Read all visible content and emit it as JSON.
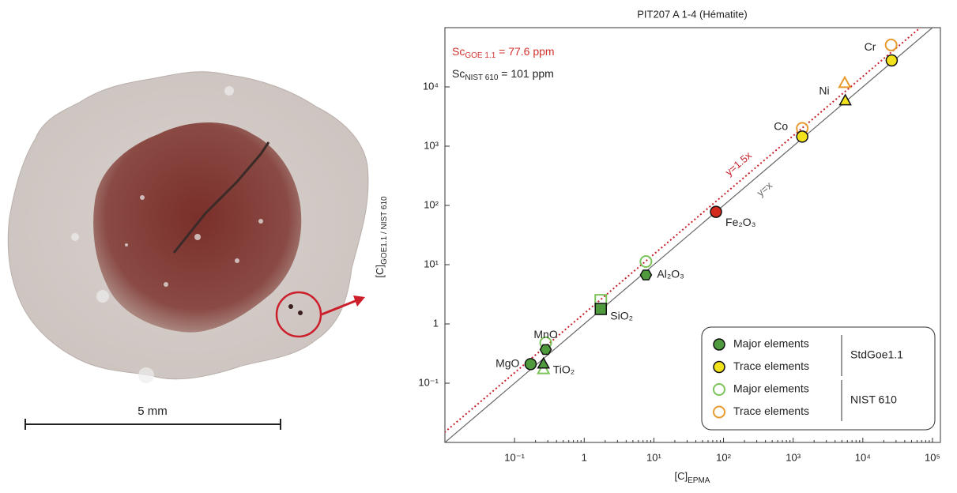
{
  "specimen": {
    "scale_label": "5 mm"
  },
  "chart_data": {
    "type": "scatter",
    "title": "PIT207 A 1-4 (Hématite)",
    "xlabel": {
      "text": "[C]",
      "sub": "EPMA"
    },
    "ylabel": {
      "text": "[C]",
      "sub": "GOE1.1 / NIST 610"
    },
    "xscale": "log",
    "yscale": "log",
    "xlim": [
      0.01,
      130000
    ],
    "ylim": [
      0.01,
      100000
    ],
    "xticks": [
      {
        "value": 0.1,
        "label": "10⁻¹"
      },
      1,
      {
        "value": 10,
        "label": "10¹"
      },
      {
        "value": 100,
        "label": "10²"
      },
      {
        "value": 1000,
        "label": "10³"
      },
      {
        "value": 10000,
        "label": "10⁴"
      },
      {
        "value": 100000,
        "label": "10⁵"
      }
    ],
    "yticks": [
      {
        "value": 0.1,
        "label": "10⁻¹"
      },
      1,
      {
        "value": 10,
        "label": "10¹"
      },
      {
        "value": 100,
        "label": "10²"
      },
      {
        "value": 1000,
        "label": "10³"
      },
      {
        "value": 10000,
        "label": "10⁴"
      }
    ],
    "annotations": [
      {
        "text": "Sc",
        "sub": "GOE 1.1",
        "tail": " = 77.6 ppm",
        "color": "#d0312d"
      },
      {
        "text": "Sc",
        "sub": "NIST 610",
        "tail": " = 101 ppm",
        "color": "#222222"
      }
    ],
    "lines": [
      {
        "label": "y=x",
        "slope": 1,
        "color": "#666666",
        "dashed": false
      },
      {
        "label": "y=1.5x",
        "slope": 1.5,
        "color": "#c8202a",
        "dashed": true
      }
    ],
    "groups": [
      {
        "name": "StdGoe1.1",
        "series": [
          {
            "name": "Major elements",
            "color": "#4f9a3c",
            "filled": true,
            "x": [
              0.17,
              0.28,
              0.26,
              1.73,
              7.7,
              78
            ],
            "values": [
              0.21,
              0.37,
              0.21,
              1.79,
              6.7,
              78
            ],
            "markers": [
              "circle",
              "hexagon",
              "triangle",
              "square",
              "hexagon",
              "circle"
            ],
            "point_colors": [
              null,
              null,
              null,
              null,
              null,
              "#d42a1e"
            ],
            "labels": [
              "MgO",
              "MnO",
              "TiO₂",
              "SiO₂",
              "Al₂O₃",
              "Fe₂O₃"
            ]
          },
          {
            "name": "Trace elements",
            "color": "#f2e21c",
            "filled": true,
            "x": [
              1350,
              5600,
              26000
            ],
            "values": [
              1450,
              5800,
              28000
            ],
            "markers": [
              "circle",
              "triangle",
              "circle"
            ],
            "labels": [
              "Co",
              "Ni",
              "Cr"
            ]
          }
        ]
      },
      {
        "name": "NIST 610",
        "series": [
          {
            "name": "Major elements",
            "color": "#7cc35a",
            "filled": false,
            "x": [
              0.26,
              0.28,
              1.73,
              7.7
            ],
            "values": [
              0.17,
              0.48,
              2.5,
              11.3
            ],
            "markers": [
              "triangle",
              "circle",
              "square",
              "circle"
            ]
          },
          {
            "name": "Trace elements",
            "color": "#e89a2e",
            "filled": false,
            "x": [
              1350,
              5500,
              25500
            ],
            "values": [
              2000,
              11500,
              51000
            ],
            "markers": [
              "circle",
              "triangle",
              "circle"
            ]
          }
        ]
      }
    ]
  }
}
